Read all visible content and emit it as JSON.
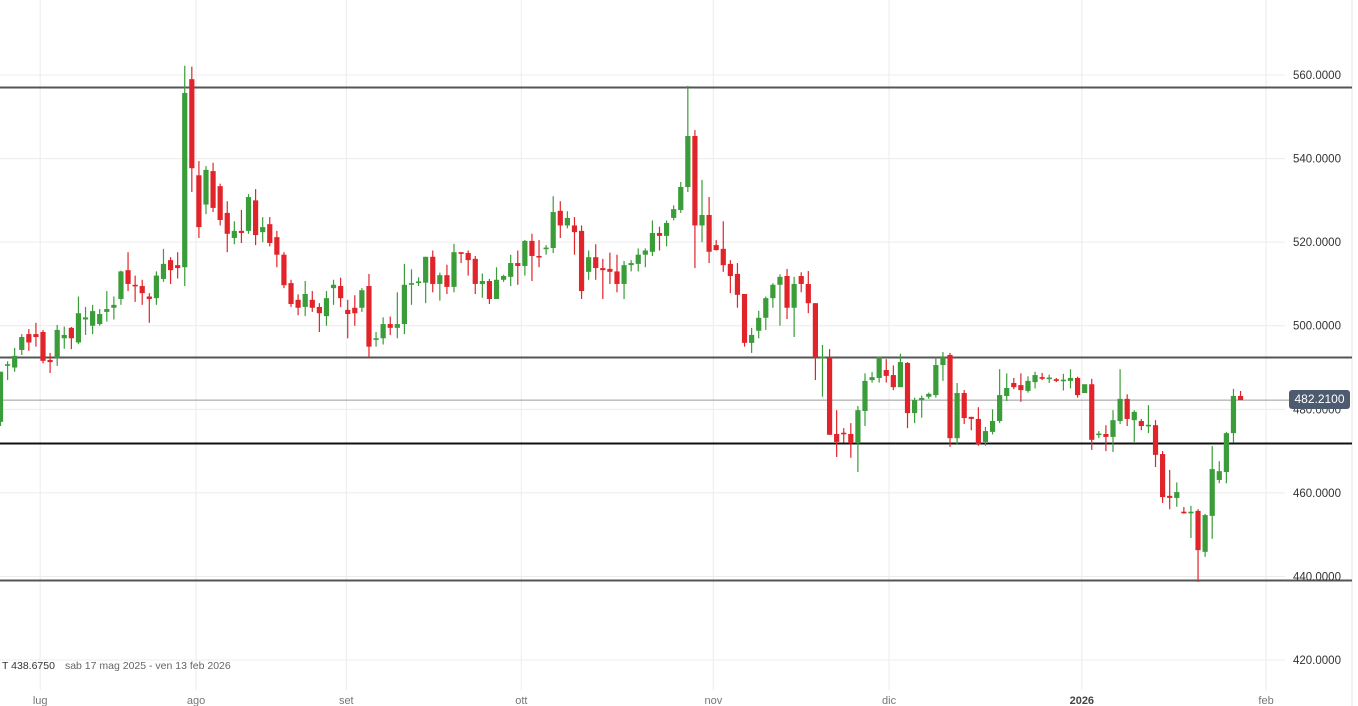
{
  "chart_data": {
    "type": "candlestick",
    "ohlc_fields": [
      "open",
      "high",
      "low",
      "close"
    ],
    "ohlc": [
      [
        477,
        489,
        476,
        489
      ],
      [
        490.5,
        491.5,
        487,
        490.8
      ],
      [
        490,
        494.7,
        489,
        492.8
      ],
      [
        494.2,
        498,
        493,
        497.3
      ],
      [
        498,
        499.2,
        494,
        496
      ],
      [
        498,
        500.7,
        495,
        497.3
      ],
      [
        498.5,
        499,
        491,
        491.6
      ],
      [
        491.8,
        493.5,
        488.7,
        491.3
      ],
      [
        492.3,
        500.2,
        490.4,
        499
      ],
      [
        497,
        499.8,
        494.5,
        497.8
      ],
      [
        499.5,
        499.7,
        494.4,
        497
      ],
      [
        496,
        507,
        495.6,
        503
      ],
      [
        501.5,
        504.5,
        497.8,
        502
      ],
      [
        500,
        505,
        498,
        503.5
      ],
      [
        500.4,
        504,
        500,
        502.8
      ],
      [
        503.3,
        508.3,
        501,
        504
      ],
      [
        504.3,
        507,
        501.5,
        505
      ],
      [
        506.4,
        513.2,
        505,
        513
      ],
      [
        513.3,
        517.6,
        508.3,
        510
      ],
      [
        509.8,
        512,
        505.7,
        509.6
      ],
      [
        509.5,
        511,
        505,
        507.8
      ],
      [
        507,
        507.8,
        500.7,
        506.4
      ],
      [
        506.6,
        513,
        505,
        512
      ],
      [
        511.2,
        518.4,
        510.5,
        514.8
      ],
      [
        515.7,
        516.4,
        510,
        513.3
      ],
      [
        514.5,
        517.6,
        511.3,
        513.8
      ],
      [
        514,
        562.2,
        509.5,
        555.7
      ],
      [
        559,
        562,
        532,
        537.7
      ],
      [
        536,
        539.4,
        521,
        523.6
      ],
      [
        529,
        538.2,
        526.7,
        537.3
      ],
      [
        537,
        539,
        527.2,
        528.2
      ],
      [
        533.4,
        534,
        524,
        525.3
      ],
      [
        527,
        529.8,
        517.6,
        522
      ],
      [
        521,
        525,
        519.5,
        522.7
      ],
      [
        522.7,
        527.7,
        519.8,
        522.2
      ],
      [
        522.7,
        531.5,
        522,
        530.8
      ],
      [
        530,
        532.7,
        519.3,
        521.7
      ],
      [
        522.4,
        526,
        520,
        523.6
      ],
      [
        524.3,
        526,
        519,
        519.8
      ],
      [
        521.2,
        522.7,
        514,
        517
      ],
      [
        517,
        517.6,
        509,
        509.7
      ],
      [
        510.2,
        511,
        504.5,
        505.2
      ],
      [
        506.2,
        507.5,
        502.5,
        504.3
      ],
      [
        504.5,
        510.7,
        502.3,
        507.6
      ],
      [
        506.2,
        508.3,
        503.3,
        504.3
      ],
      [
        504.5,
        505.4,
        498.5,
        503
      ],
      [
        502.3,
        508.3,
        500,
        506.6
      ],
      [
        509,
        511,
        505,
        509.8
      ],
      [
        509.5,
        511.5,
        504.5,
        506.6
      ],
      [
        503.8,
        506.2,
        497,
        502.8
      ],
      [
        504.3,
        507.3,
        500,
        503
      ],
      [
        504.3,
        509,
        503.3,
        508.5
      ],
      [
        509.5,
        512.4,
        492.3,
        495
      ],
      [
        496.8,
        498.5,
        495,
        497
      ],
      [
        497,
        502,
        495.5,
        500.4
      ],
      [
        500.4,
        502.2,
        497.8,
        499.5
      ],
      [
        499.5,
        508,
        497,
        500.4
      ],
      [
        500.4,
        514.8,
        498,
        509.8
      ],
      [
        509.8,
        513.5,
        505,
        510.2
      ],
      [
        510.3,
        511.6,
        509.5,
        510.6
      ],
      [
        510.3,
        516.5,
        505.4,
        516.5
      ],
      [
        516.5,
        518,
        508,
        510
      ],
      [
        510,
        512.7,
        506,
        512.1
      ],
      [
        512.1,
        514.6,
        507.6,
        509.3
      ],
      [
        509.3,
        519.6,
        508,
        517.6
      ],
      [
        517.6,
        517.6,
        515,
        517.2
      ],
      [
        517.4,
        518,
        512,
        515.7
      ],
      [
        516,
        516.7,
        507.6,
        510
      ],
      [
        510,
        512.5,
        506.7,
        510.7
      ],
      [
        510.7,
        511.2,
        505.2,
        506.4
      ],
      [
        506.4,
        514,
        506.4,
        511
      ],
      [
        511,
        512.2,
        510.5,
        511.9
      ],
      [
        511.7,
        517,
        509.5,
        515
      ],
      [
        515,
        518,
        509.8,
        514.3
      ],
      [
        514.3,
        520.5,
        512,
        520.3
      ],
      [
        520.3,
        522,
        510.7,
        516.7
      ],
      [
        516.7,
        520.5,
        514,
        516.4
      ],
      [
        518.4,
        519.3,
        517,
        518.7
      ],
      [
        518.6,
        531,
        517.4,
        527.2
      ],
      [
        527.5,
        529.8,
        521,
        524
      ],
      [
        524,
        527.4,
        523.3,
        525.8
      ],
      [
        524,
        526,
        517,
        522.4
      ],
      [
        522.7,
        524,
        506.4,
        508.3
      ],
      [
        512.9,
        518,
        511,
        516.4
      ],
      [
        516.4,
        519.5,
        511,
        513.8
      ],
      [
        513.8,
        516,
        506.4,
        513.3
      ],
      [
        513.6,
        517.5,
        510,
        512.9
      ],
      [
        513,
        517,
        508,
        510
      ],
      [
        510,
        515.5,
        506.4,
        514.5
      ],
      [
        514.5,
        515.7,
        513,
        515
      ],
      [
        514.8,
        518.5,
        513,
        517
      ],
      [
        517,
        518.5,
        514,
        518
      ],
      [
        517.7,
        525.2,
        516.7,
        522.2
      ],
      [
        522.2,
        523.7,
        518,
        521.5
      ],
      [
        521.5,
        525.2,
        519,
        524.6
      ],
      [
        525.8,
        528.8,
        525.2,
        527.9
      ],
      [
        527.7,
        534.4,
        527,
        533.2
      ],
      [
        533.2,
        557.4,
        532,
        545.4
      ],
      [
        545.4,
        546.8,
        513.8,
        524
      ],
      [
        524,
        534.9,
        520,
        526.5
      ],
      [
        526.5,
        530.8,
        515,
        517.7
      ],
      [
        519.3,
        520.5,
        518,
        518.1
      ],
      [
        518.4,
        525,
        512.9,
        514.5
      ],
      [
        514.8,
        515.7,
        507.8,
        511.9
      ],
      [
        512.4,
        515,
        504.3,
        507.4
      ],
      [
        507.6,
        507.6,
        495,
        495.9
      ],
      [
        495.9,
        499.5,
        493.5,
        497.8
      ],
      [
        498.8,
        503.6,
        497,
        501.9
      ],
      [
        501.9,
        507,
        499,
        506.6
      ],
      [
        506.6,
        510.2,
        504.3,
        509.8
      ],
      [
        509.8,
        512.3,
        500,
        511.7
      ],
      [
        511.9,
        513.6,
        501.6,
        504.3
      ],
      [
        504.3,
        511.7,
        497.3,
        510
      ],
      [
        511.9,
        512.8,
        508,
        510
      ],
      [
        510,
        513.1,
        503,
        505.4
      ],
      [
        505.4,
        505.4,
        487,
        492.5
      ],
      [
        492.3,
        495.4,
        483,
        492.6
      ],
      [
        492.5,
        494.4,
        473.9,
        473.9
      ],
      [
        474.1,
        479.8,
        468.6,
        472.2
      ],
      [
        474.4,
        475.5,
        472,
        474.1
      ],
      [
        474.1,
        476.7,
        468.4,
        471.9
      ],
      [
        471.9,
        480.8,
        465,
        479.8
      ],
      [
        479.6,
        488.6,
        476,
        486.8
      ],
      [
        487,
        488.9,
        486.4,
        487.7
      ],
      [
        487.5,
        492.5,
        486.4,
        492.5
      ],
      [
        489.4,
        492,
        486.4,
        488
      ],
      [
        488.2,
        490.5,
        484.6,
        485.3
      ],
      [
        485.3,
        493.3,
        485.3,
        491.3
      ],
      [
        491.1,
        491.3,
        475.5,
        479.1
      ],
      [
        479.1,
        482.8,
        476.7,
        482.2
      ],
      [
        482.2,
        483.3,
        478,
        482.7
      ],
      [
        483,
        484,
        482.5,
        483.7
      ],
      [
        483.4,
        492.4,
        482.8,
        490.6
      ],
      [
        490.6,
        493.7,
        486.8,
        492.5
      ],
      [
        493,
        493.5,
        471,
        473.1
      ],
      [
        473.1,
        486.3,
        471.5,
        483.9
      ],
      [
        483.9,
        484.6,
        476.5,
        477.9
      ],
      [
        478.2,
        478.2,
        475,
        477.7
      ],
      [
        477.7,
        480.5,
        471.3,
        471.7
      ],
      [
        472.2,
        475.8,
        471.3,
        474.8
      ],
      [
        474.6,
        480,
        474,
        477.2
      ],
      [
        477.2,
        489.6,
        476.7,
        483.4
      ],
      [
        483.2,
        488.6,
        482,
        485.1
      ],
      [
        486.3,
        487.5,
        484.8,
        485.3
      ],
      [
        485.8,
        488.6,
        481.8,
        484.6
      ],
      [
        484.4,
        487.9,
        484,
        486.8
      ],
      [
        486.5,
        489,
        485,
        488.2
      ],
      [
        487.7,
        488.7,
        487,
        487.3
      ],
      [
        487.4,
        488.3,
        486.3,
        487.6
      ],
      [
        487.2,
        487.5,
        486.5,
        486.8
      ],
      [
        487,
        488.5,
        484.5,
        487.1
      ],
      [
        486.8,
        489.6,
        485,
        487.5
      ],
      [
        487.5,
        487.8,
        482.8,
        483.4
      ],
      [
        483.9,
        486,
        483.9,
        486
      ],
      [
        486,
        487.3,
        470.3,
        472.7
      ],
      [
        474,
        474.8,
        473.1,
        474.2
      ],
      [
        474.1,
        476.2,
        470,
        473.4
      ],
      [
        473.4,
        479.8,
        469.8,
        477.4
      ],
      [
        477.2,
        489.6,
        476.5,
        482.5
      ],
      [
        482.5,
        483.6,
        476,
        477.7
      ],
      [
        477.4,
        479.8,
        472.2,
        479.4
      ],
      [
        477.2,
        477.7,
        475,
        476
      ],
      [
        476.1,
        481,
        474.3,
        476.3
      ],
      [
        476.2,
        477.4,
        466.2,
        469.1
      ],
      [
        469.3,
        470,
        457.6,
        459
      ],
      [
        459.3,
        465.5,
        456.1,
        458.8
      ],
      [
        458.8,
        462.5,
        456.7,
        460.2
      ],
      [
        455.5,
        456.6,
        455,
        455.2
      ],
      [
        455.3,
        456.9,
        449.2,
        455.5
      ],
      [
        455.7,
        456.1,
        438.7,
        446.3
      ],
      [
        445.9,
        455,
        444.7,
        454.7
      ],
      [
        454.5,
        471.2,
        449,
        465.7
      ],
      [
        463.1,
        467.6,
        462.3,
        465.2
      ],
      [
        465,
        474.6,
        462.3,
        474.3
      ],
      [
        474.3,
        484.9,
        472,
        483.2
      ],
      [
        483.2,
        484.4,
        482.2,
        482.21
      ]
    ],
    "ylim": [
      416,
      570
    ],
    "y_axis_position": "right",
    "y_ticks": [
      "420.0000",
      "440.0000",
      "460.0000",
      "480.0000",
      "500.0000",
      "520.0000",
      "540.0000",
      "560.0000"
    ],
    "x_ticks": [
      {
        "label": "lug",
        "year": false
      },
      {
        "label": "ago",
        "year": false
      },
      {
        "label": "set",
        "year": false
      },
      {
        "label": "ott",
        "year": false
      },
      {
        "label": "nov",
        "year": false
      },
      {
        "label": "dic",
        "year": false
      },
      {
        "label": "2026",
        "year": true
      },
      {
        "label": "feb",
        "year": false
      }
    ],
    "horizontal_levels": [
      557.1,
      492.5,
      472.0,
      439.2
    ],
    "last_price": 482.21,
    "last_price_label": "482.2100",
    "grid": true,
    "colors": {
      "up": "#3a9d3a",
      "down": "#e0242a",
      "level": "#555555",
      "grid": "#ececec",
      "price_box": "#4d5b70"
    }
  },
  "footer": {
    "low_label": "T 438.6750",
    "date_range": "sab 17 mag 2025 - ven 13 feb 2026"
  }
}
